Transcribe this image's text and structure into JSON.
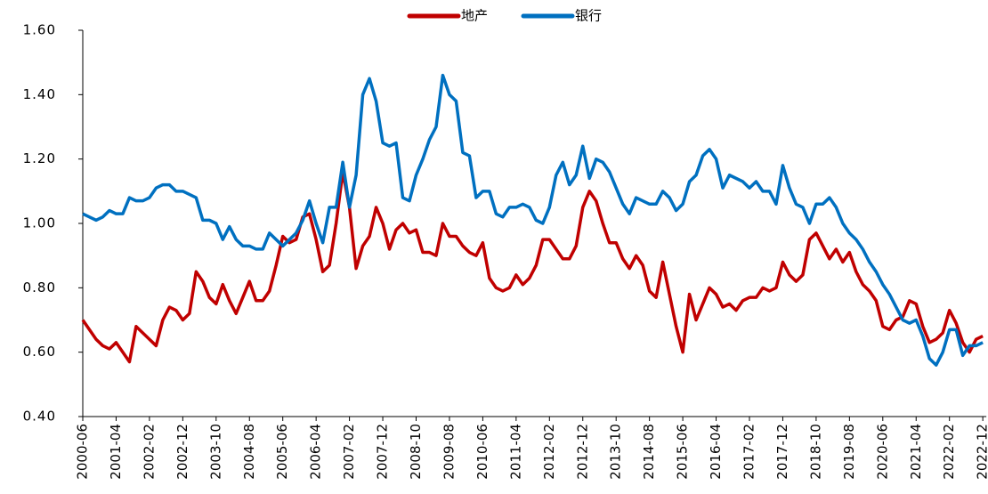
{
  "chart_data": {
    "type": "line",
    "categories": [
      "2000-06",
      null,
      null,
      null,
      null,
      "2001-04",
      null,
      null,
      null,
      null,
      "2002-02",
      null,
      null,
      null,
      null,
      "2002-12",
      null,
      null,
      null,
      null,
      "2003-10",
      null,
      null,
      null,
      null,
      "2004-08",
      null,
      null,
      null,
      null,
      "2005-06",
      null,
      null,
      null,
      null,
      "2006-04",
      null,
      null,
      null,
      null,
      "2007-02",
      null,
      null,
      null,
      null,
      "2007-12",
      null,
      null,
      null,
      null,
      "2008-10",
      null,
      null,
      null,
      null,
      "2009-08",
      null,
      null,
      null,
      null,
      "2010-06",
      null,
      null,
      null,
      null,
      "2011-04",
      null,
      null,
      null,
      null,
      "2012-02",
      null,
      null,
      null,
      null,
      "2012-12",
      null,
      null,
      null,
      null,
      "2013-10",
      null,
      null,
      null,
      null,
      "2014-08",
      null,
      null,
      null,
      null,
      "2015-06",
      null,
      null,
      null,
      null,
      "2016-04",
      null,
      null,
      null,
      null,
      "2017-02",
      null,
      null,
      null,
      null,
      "2017-12",
      null,
      null,
      null,
      null,
      "2018-10",
      null,
      null,
      null,
      null,
      "2019-08",
      null,
      null,
      null,
      null,
      "2020-06",
      null,
      null,
      null,
      null,
      "2021-04",
      null,
      null,
      null,
      null,
      "2022-02",
      null,
      null,
      null,
      null,
      "2022-12"
    ],
    "series": [
      {
        "name": "地产",
        "color": "#c00000",
        "values": [
          0.7,
          0.67,
          0.64,
          0.62,
          0.61,
          0.63,
          0.6,
          0.57,
          0.68,
          0.66,
          0.64,
          0.62,
          0.7,
          0.74,
          0.73,
          0.7,
          0.72,
          0.85,
          0.82,
          0.77,
          0.75,
          0.81,
          0.76,
          0.72,
          0.77,
          0.82,
          0.76,
          0.76,
          0.79,
          0.87,
          0.96,
          0.94,
          0.95,
          1.02,
          1.03,
          0.95,
          0.85,
          0.87,
          1.0,
          1.16,
          1.05,
          0.86,
          0.93,
          0.96,
          1.05,
          1.0,
          0.92,
          0.98,
          1.0,
          0.97,
          0.98,
          0.91,
          0.91,
          0.9,
          1.0,
          0.96,
          0.96,
          0.93,
          0.91,
          0.9,
          0.94,
          0.83,
          0.8,
          0.79,
          0.8,
          0.84,
          0.81,
          0.83,
          0.87,
          0.95,
          0.95,
          0.92,
          0.89,
          0.89,
          0.93,
          1.05,
          1.1,
          1.07,
          1.0,
          0.94,
          0.94,
          0.89,
          0.86,
          0.9,
          0.87,
          0.79,
          0.77,
          0.88,
          0.78,
          0.68,
          0.6,
          0.78,
          0.7,
          0.75,
          0.8,
          0.78,
          0.74,
          0.75,
          0.73,
          0.76,
          0.77,
          0.77,
          0.8,
          0.79,
          0.8,
          0.88,
          0.84,
          0.82,
          0.84,
          0.95,
          0.97,
          0.93,
          0.89,
          0.92,
          0.88,
          0.91,
          0.85,
          0.81,
          0.79,
          0.76,
          0.68,
          0.67,
          0.7,
          0.71,
          0.76,
          0.75,
          0.68,
          0.63,
          0.64,
          0.66,
          0.73,
          0.69,
          0.63,
          0.6,
          0.64,
          0.65
        ]
      },
      {
        "name": "银行",
        "color": "#0070c0",
        "values": [
          1.03,
          1.02,
          1.01,
          1.02,
          1.04,
          1.03,
          1.03,
          1.08,
          1.07,
          1.07,
          1.08,
          1.11,
          1.12,
          1.12,
          1.1,
          1.1,
          1.09,
          1.08,
          1.01,
          1.01,
          1.0,
          0.95,
          0.99,
          0.95,
          0.93,
          0.93,
          0.92,
          0.92,
          0.97,
          0.95,
          0.93,
          0.95,
          0.97,
          1.01,
          1.07,
          1.0,
          0.94,
          1.05,
          1.05,
          1.19,
          1.05,
          1.15,
          1.4,
          1.45,
          1.38,
          1.25,
          1.24,
          1.25,
          1.08,
          1.07,
          1.15,
          1.2,
          1.26,
          1.3,
          1.46,
          1.4,
          1.38,
          1.22,
          1.21,
          1.08,
          1.1,
          1.1,
          1.03,
          1.02,
          1.05,
          1.05,
          1.06,
          1.05,
          1.01,
          1.0,
          1.05,
          1.15,
          1.19,
          1.12,
          1.15,
          1.24,
          1.14,
          1.2,
          1.19,
          1.16,
          1.11,
          1.06,
          1.03,
          1.08,
          1.07,
          1.06,
          1.06,
          1.1,
          1.08,
          1.04,
          1.06,
          1.13,
          1.15,
          1.21,
          1.23,
          1.2,
          1.11,
          1.15,
          1.14,
          1.13,
          1.11,
          1.13,
          1.1,
          1.1,
          1.06,
          1.18,
          1.11,
          1.06,
          1.05,
          1.0,
          1.06,
          1.06,
          1.08,
          1.05,
          1.0,
          0.97,
          0.95,
          0.92,
          0.88,
          0.85,
          0.81,
          0.78,
          0.74,
          0.7,
          0.69,
          0.7,
          0.65,
          0.58,
          0.56,
          0.6,
          0.67,
          0.67,
          0.59,
          0.62,
          0.62,
          0.63
        ]
      }
    ],
    "ylim": [
      0.4,
      1.6
    ],
    "yticks": [
      {
        "value": 0.4,
        "label": "0.40"
      },
      {
        "value": 0.6,
        "label": "0.60"
      },
      {
        "value": 0.8,
        "label": "0.80"
      },
      {
        "value": 1.0,
        "label": "1.00"
      },
      {
        "value": 1.2,
        "label": "1.20"
      },
      {
        "value": 1.4,
        "label": "1.40"
      },
      {
        "value": 1.6,
        "label": "1.60"
      }
    ],
    "legend": "top"
  }
}
